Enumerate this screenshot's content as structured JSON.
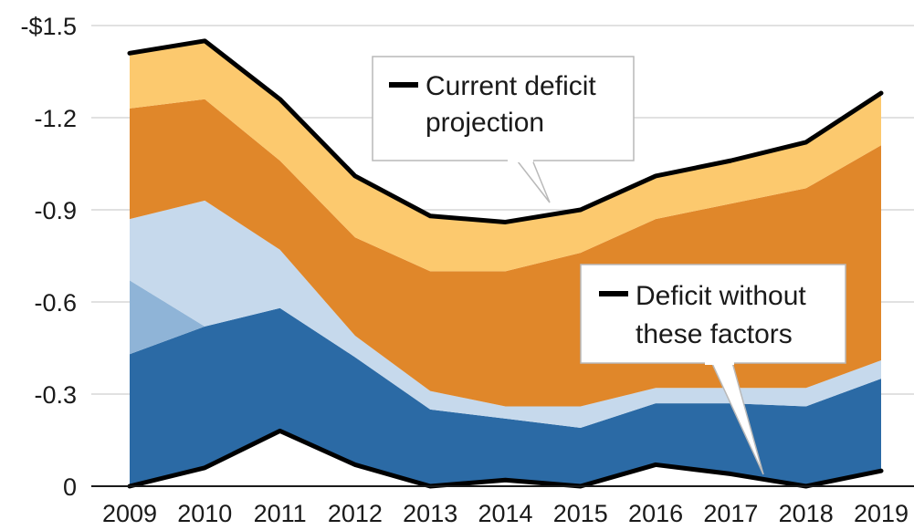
{
  "chart_data": {
    "type": "area",
    "title": "",
    "xlabel": "",
    "ylabel": "",
    "categories": [
      "2009",
      "2010",
      "2011",
      "2012",
      "2013",
      "2014",
      "2015",
      "2016",
      "2017",
      "2018",
      "2019"
    ],
    "ylim": [
      0,
      -1.5
    ],
    "y_ticks": [
      {
        "value": 0,
        "label": "0"
      },
      {
        "value": -0.3,
        "label": "-0.3"
      },
      {
        "value": -0.6,
        "label": "-0.6"
      },
      {
        "value": -0.9,
        "label": "-0.9"
      },
      {
        "value": -1.2,
        "label": "-1.2"
      },
      {
        "value": -1.5,
        "label": "-$1.5"
      }
    ],
    "grid": true,
    "layers": [
      {
        "color": "#2b6aa5",
        "bottom": [
          0,
          -0.06,
          -0.18,
          -0.07,
          0,
          -0.02,
          0,
          -0.07,
          -0.04,
          0,
          -0.05
        ],
        "top": [
          -0.43,
          -0.52,
          -0.58,
          -0.42,
          -0.25,
          -0.22,
          -0.19,
          -0.27,
          -0.27,
          -0.26,
          -0.35
        ]
      },
      {
        "color": "#8fb4d7",
        "bottom": [
          -0.43,
          -0.52,
          -0.58,
          -0.42,
          -0.25,
          -0.22,
          -0.19,
          -0.27,
          -0.27,
          -0.26,
          -0.35
        ],
        "top": [
          -0.67,
          -0.52,
          -0.58,
          -0.42,
          -0.25,
          -0.22,
          -0.19,
          -0.27,
          -0.27,
          -0.26,
          -0.35
        ]
      },
      {
        "color": "#c6d9ec",
        "bottom": [
          -0.67,
          -0.52,
          -0.58,
          -0.42,
          -0.25,
          -0.22,
          -0.19,
          -0.27,
          -0.27,
          -0.26,
          -0.35
        ],
        "top": [
          -0.87,
          -0.93,
          -0.77,
          -0.49,
          -0.31,
          -0.26,
          -0.26,
          -0.32,
          -0.32,
          -0.32,
          -0.41
        ]
      },
      {
        "color": "#e0872a",
        "bottom": [
          -0.87,
          -0.93,
          -0.77,
          -0.49,
          -0.31,
          -0.26,
          -0.26,
          -0.32,
          -0.32,
          -0.32,
          -0.41
        ],
        "top": [
          -1.23,
          -1.26,
          -1.06,
          -0.81,
          -0.7,
          -0.7,
          -0.76,
          -0.87,
          -0.92,
          -0.97,
          -1.11
        ]
      },
      {
        "color": "#fcc96e",
        "bottom": [
          -1.23,
          -1.26,
          -1.06,
          -0.81,
          -0.7,
          -0.7,
          -0.76,
          -0.87,
          -0.92,
          -0.97,
          -1.11
        ],
        "top": [
          -1.41,
          -1.45,
          -1.26,
          -1.01,
          -0.88,
          -0.86,
          -0.9,
          -1.01,
          -1.06,
          -1.12,
          -1.28
        ]
      }
    ],
    "series": [
      {
        "name": "Current deficit projection",
        "color": "#000000",
        "values": [
          -1.41,
          -1.45,
          -1.26,
          -1.01,
          -0.88,
          -0.86,
          -0.9,
          -1.01,
          -1.06,
          -1.12,
          -1.28
        ]
      },
      {
        "name": "Deficit without these factors",
        "color": "#000000",
        "values": [
          0,
          -0.06,
          -0.18,
          -0.07,
          0,
          -0.02,
          0,
          -0.07,
          -0.04,
          0,
          -0.05
        ]
      }
    ],
    "annotations": [
      {
        "lines": [
          "Current deficit",
          "projection"
        ],
        "series": 0
      },
      {
        "lines": [
          "Deficit without",
          "these factors"
        ],
        "series": 1
      }
    ]
  }
}
